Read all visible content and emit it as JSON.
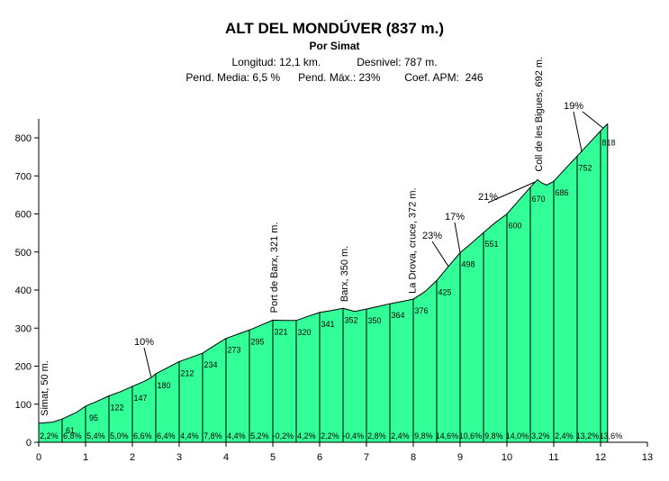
{
  "chart_data": {
    "type": "area",
    "title": "ALT DEL MONDÚVER (837 m.)",
    "subtitle": "Por Simat",
    "stats": {
      "longitud": "Longitud: 12,1 km.",
      "desnivel": "Desnivel: 787 m.",
      "pend_media": "Pend. Media: 6,5 %",
      "pend_max": "Pend. Máx.: 23%",
      "coef": "Coef. APM:  246"
    },
    "fill_color": "#33FF99",
    "xlim": [
      0,
      13
    ],
    "ylim": [
      0,
      850
    ],
    "x_ticks": [
      0,
      1,
      2,
      3,
      4,
      5,
      6,
      7,
      8,
      9,
      10,
      11,
      12,
      13
    ],
    "y_ticks": [
      0,
      100,
      200,
      300,
      400,
      500,
      600,
      700,
      800
    ],
    "profile": [
      [
        0,
        50
      ],
      [
        0.3,
        53
      ],
      [
        0.5,
        61
      ],
      [
        0.8,
        78
      ],
      [
        1.0,
        95
      ],
      [
        1.25,
        108
      ],
      [
        1.5,
        122
      ],
      [
        1.75,
        133
      ],
      [
        2.0,
        147
      ],
      [
        2.25,
        160
      ],
      [
        2.4,
        170
      ],
      [
        2.5,
        180
      ],
      [
        2.75,
        196
      ],
      [
        3.0,
        212
      ],
      [
        3.25,
        223
      ],
      [
        3.5,
        234
      ],
      [
        3.75,
        254
      ],
      [
        4.0,
        273
      ],
      [
        4.25,
        284
      ],
      [
        4.5,
        295
      ],
      [
        4.75,
        308
      ],
      [
        5.0,
        321
      ],
      [
        5.25,
        320
      ],
      [
        5.5,
        320
      ],
      [
        5.75,
        331
      ],
      [
        6.0,
        341
      ],
      [
        6.25,
        346
      ],
      [
        6.5,
        352
      ],
      [
        6.75,
        344
      ],
      [
        7.0,
        350
      ],
      [
        7.25,
        357
      ],
      [
        7.5,
        364
      ],
      [
        7.75,
        370
      ],
      [
        8.0,
        376
      ],
      [
        8.25,
        396
      ],
      [
        8.5,
        425
      ],
      [
        8.75,
        462
      ],
      [
        9.0,
        498
      ],
      [
        9.25,
        524
      ],
      [
        9.5,
        551
      ],
      [
        9.75,
        577
      ],
      [
        10.0,
        600
      ],
      [
        10.25,
        635
      ],
      [
        10.5,
        670
      ],
      [
        10.65,
        690
      ],
      [
        10.75,
        681
      ],
      [
        10.85,
        676
      ],
      [
        11.0,
        686
      ],
      [
        11.25,
        719
      ],
      [
        11.5,
        752
      ],
      [
        11.75,
        785
      ],
      [
        12.0,
        818
      ],
      [
        12.15,
        837
      ]
    ],
    "point_labels": [
      {
        "x": 0.5,
        "value": "61"
      },
      {
        "x": 1.0,
        "value": "95"
      },
      {
        "x": 1.5,
        "value": "122"
      },
      {
        "x": 2.0,
        "value": "147"
      },
      {
        "x": 2.5,
        "value": "180"
      },
      {
        "x": 3.0,
        "value": "212"
      },
      {
        "x": 3.5,
        "value": "234"
      },
      {
        "x": 4.0,
        "value": "273"
      },
      {
        "x": 4.5,
        "value": "295"
      },
      {
        "x": 5.0,
        "value": "321"
      },
      {
        "x": 5.5,
        "value": "320"
      },
      {
        "x": 6.0,
        "value": "341"
      },
      {
        "x": 6.5,
        "value": "352"
      },
      {
        "x": 7.0,
        "value": "350"
      },
      {
        "x": 7.5,
        "value": "364"
      },
      {
        "x": 8.0,
        "value": "376"
      },
      {
        "x": 8.5,
        "value": "425"
      },
      {
        "x": 9.0,
        "value": "498"
      },
      {
        "x": 9.5,
        "value": "551"
      },
      {
        "x": 10.0,
        "value": "600"
      },
      {
        "x": 10.5,
        "value": "670"
      },
      {
        "x": 11.0,
        "value": "686"
      },
      {
        "x": 11.5,
        "value": "752"
      },
      {
        "x": 12.0,
        "value": "818"
      }
    ],
    "segment_grades": [
      "2,2%",
      "6,8%",
      "5,4%",
      "5,0%",
      "6,6%",
      "6,4%",
      "4,4%",
      "7,8%",
      "4,4%",
      "5,2%",
      "-0,2%",
      "4,2%",
      "2,2%",
      "-0,4%",
      "2,8%",
      "2,4%",
      "9,8%",
      "14,6%",
      "10,6%",
      "9,8%",
      "14,0%",
      "3,2%",
      "2,4%",
      "13,2%",
      "13,6%"
    ],
    "waypoints": [
      {
        "x": 0.0,
        "alt": 50,
        "label": "Simat, 50 m."
      },
      {
        "x": 5.0,
        "alt": 321,
        "label": "Port de Barx, 321 m."
      },
      {
        "x": 6.5,
        "alt": 350,
        "label": "Barx, 350 m."
      },
      {
        "x": 7.95,
        "alt": 372,
        "label": "La Drova, cruce, 372 m."
      },
      {
        "x": 10.65,
        "alt": 692,
        "label": "Coll de les Bigues, 692 m."
      }
    ],
    "max_grade_callouts": [
      {
        "label": "10%",
        "x": 2.4,
        "alt": 172
      },
      {
        "label": "23%",
        "x": 8.75,
        "alt": 462
      },
      {
        "label": "17%",
        "x": 9.0,
        "alt": 498
      },
      {
        "label": "21%",
        "x": 10.6,
        "alt": 684
      },
      {
        "label": "19%",
        "x": 11.6,
        "alt": 762
      },
      {
        "label": "19%",
        "x": 12.05,
        "alt": 826
      }
    ]
  }
}
